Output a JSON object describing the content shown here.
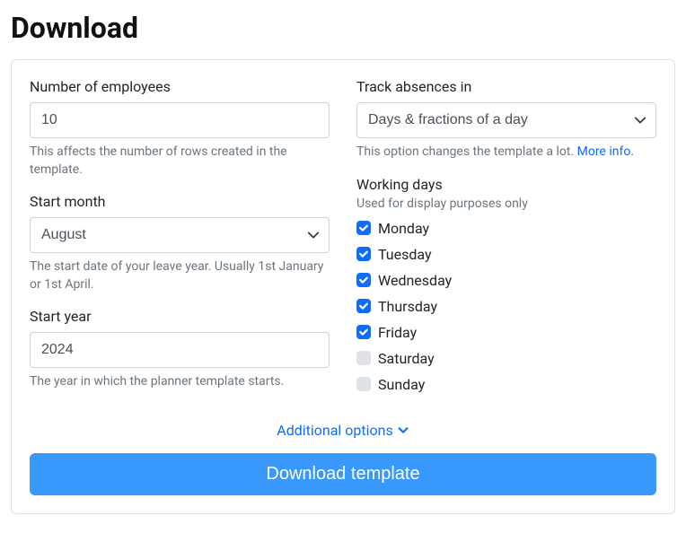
{
  "page_title": "Download",
  "left": {
    "employees": {
      "label": "Number of employees",
      "value": "10",
      "help": "This affects the number of rows created in the template."
    },
    "start_month": {
      "label": "Start month",
      "value": "August",
      "help": "The start date of your leave year. Usually 1st January or 1st April."
    },
    "start_year": {
      "label": "Start year",
      "value": "2024",
      "help": "The year in which the planner template starts."
    }
  },
  "right": {
    "track": {
      "label": "Track absences in",
      "value": "Days & fractions of a day",
      "help_prefix": "This option changes the template a lot. ",
      "help_link": "More info."
    },
    "working_days": {
      "title": "Working days",
      "sub": "Used for display purposes only",
      "days": [
        {
          "label": "Monday",
          "checked": true
        },
        {
          "label": "Tuesday",
          "checked": true
        },
        {
          "label": "Wednesday",
          "checked": true
        },
        {
          "label": "Thursday",
          "checked": true
        },
        {
          "label": "Friday",
          "checked": true
        },
        {
          "label": "Saturday",
          "checked": false
        },
        {
          "label": "Sunday",
          "checked": false
        }
      ]
    }
  },
  "additional_options": "Additional options",
  "download_button": "Download template"
}
